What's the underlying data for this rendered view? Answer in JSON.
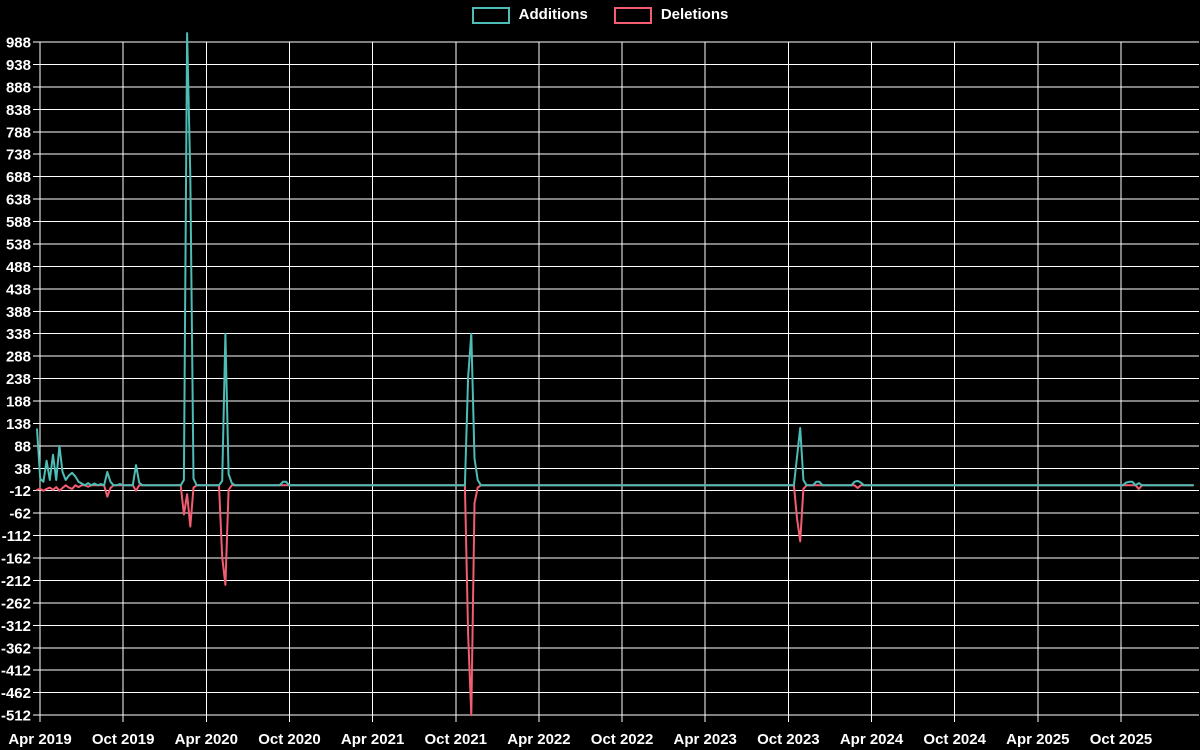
{
  "legend": {
    "items": [
      {
        "label": "Additions",
        "color": "#4dbdb5"
      },
      {
        "label": "Deletions",
        "color": "#f25d72"
      }
    ]
  },
  "colors": {
    "background": "#000000",
    "grid": "#ffffff",
    "text": "#ffffff",
    "additions": "#4dbdb5",
    "deletions": "#f25d72"
  },
  "chart_data": {
    "type": "line",
    "title": "",
    "grid": true,
    "legend_position": "top-center",
    "x_axis": {
      "unit": "week",
      "start_date": "2019-03-25",
      "weeks_total": 363,
      "tick_labels": [
        "Apr 2019",
        "Oct 2019",
        "Apr 2020",
        "Oct 2020",
        "Apr 2021",
        "Oct 2021",
        "Apr 2022",
        "Oct 2022",
        "Apr 2023",
        "Oct 2023",
        "Apr 2024",
        "Oct 2024",
        "Apr 2025",
        "Oct 2025"
      ]
    },
    "y_axis": {
      "tick_min": -512,
      "tick_max": 988,
      "tick_step": 50,
      "ticks": [
        988,
        938,
        888,
        838,
        788,
        738,
        688,
        638,
        588,
        538,
        488,
        438,
        388,
        338,
        288,
        238,
        188,
        138,
        88,
        38,
        -12,
        -62,
        -112,
        -162,
        -212,
        -262,
        -312,
        -362,
        -412,
        -462,
        -512
      ],
      "ylim": [
        -512,
        1008
      ]
    },
    "series": [
      {
        "name": "Additions",
        "color": "#4dbdb5",
        "baseline": 0,
        "points_sparse": [
          [
            0,
            125
          ],
          [
            1,
            15
          ],
          [
            2,
            8
          ],
          [
            3,
            55
          ],
          [
            4,
            12
          ],
          [
            5,
            68
          ],
          [
            6,
            12
          ],
          [
            7,
            88
          ],
          [
            8,
            30
          ],
          [
            9,
            12
          ],
          [
            10,
            22
          ],
          [
            11,
            28
          ],
          [
            12,
            20
          ],
          [
            13,
            8
          ],
          [
            14,
            4
          ],
          [
            16,
            5
          ],
          [
            18,
            4
          ],
          [
            20,
            3
          ],
          [
            22,
            30
          ],
          [
            23,
            8
          ],
          [
            26,
            3
          ],
          [
            31,
            45
          ],
          [
            32,
            6
          ],
          [
            46,
            12
          ],
          [
            47,
            1008
          ],
          [
            48,
            690
          ],
          [
            49,
            15
          ],
          [
            58,
            10
          ],
          [
            59,
            338
          ],
          [
            60,
            25
          ],
          [
            61,
            5
          ],
          [
            77,
            8
          ],
          [
            78,
            8
          ],
          [
            135,
            240
          ],
          [
            136,
            338
          ],
          [
            137,
            60
          ],
          [
            138,
            12
          ],
          [
            238,
            65
          ],
          [
            239,
            128
          ],
          [
            240,
            12
          ],
          [
            244,
            8
          ],
          [
            245,
            8
          ],
          [
            256,
            8
          ],
          [
            257,
            10
          ],
          [
            258,
            6
          ],
          [
            341,
            6
          ],
          [
            342,
            8
          ],
          [
            343,
            8
          ],
          [
            345,
            5
          ]
        ]
      },
      {
        "name": "Deletions",
        "color": "#f25d72",
        "baseline": 0,
        "points_sparse": [
          [
            0,
            -10
          ],
          [
            1,
            -8
          ],
          [
            2,
            -12
          ],
          [
            3,
            -8
          ],
          [
            4,
            -5
          ],
          [
            5,
            -10
          ],
          [
            6,
            -4
          ],
          [
            7,
            -12
          ],
          [
            8,
            -6
          ],
          [
            10,
            -5
          ],
          [
            11,
            -8
          ],
          [
            13,
            -4
          ],
          [
            16,
            -3
          ],
          [
            22,
            -25
          ],
          [
            23,
            -6
          ],
          [
            31,
            -12
          ],
          [
            46,
            -65
          ],
          [
            47,
            -20
          ],
          [
            48,
            -92
          ],
          [
            49,
            -5
          ],
          [
            58,
            -160
          ],
          [
            59,
            -222
          ],
          [
            60,
            -10
          ],
          [
            135,
            -330
          ],
          [
            136,
            -512
          ],
          [
            137,
            -40
          ],
          [
            138,
            -5
          ],
          [
            238,
            -75
          ],
          [
            239,
            -125
          ],
          [
            240,
            -8
          ],
          [
            257,
            -6
          ],
          [
            345,
            -8
          ]
        ]
      }
    ]
  }
}
